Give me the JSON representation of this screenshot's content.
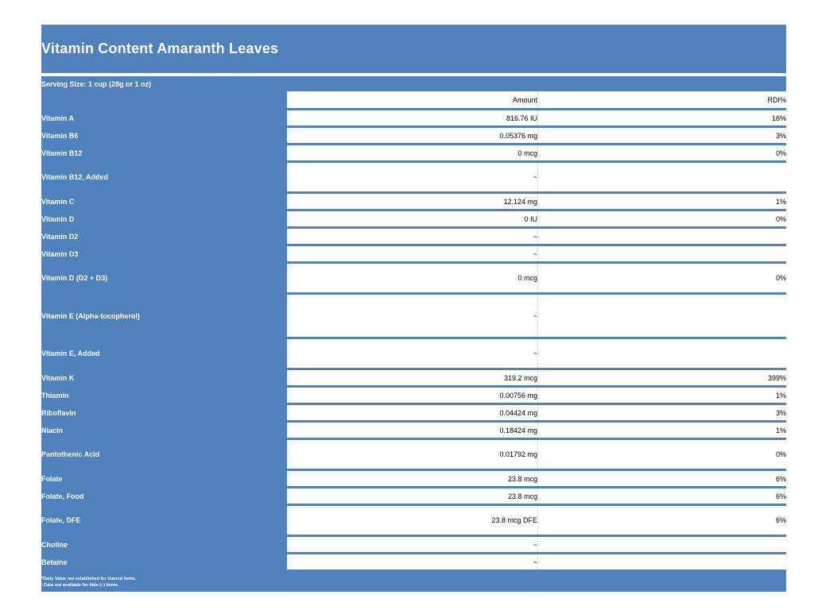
{
  "title": "Vitamin Content Amaranth Leaves",
  "serving_size": "Serving Size: 1 cup (28g or 1 oz)",
  "columns": {
    "amount": "Amount",
    "rdi": "RDI%"
  },
  "rows": [
    {
      "name": "Vitamin A",
      "amount": "816.76 IU",
      "rdi": "16%"
    },
    {
      "name": "Vitamin B6",
      "amount": "0.05376 mg",
      "rdi": "3%"
    },
    {
      "name": "Vitamin B12",
      "amount": "0 mcg",
      "rdi": "0%"
    },
    {
      "name": "Vitamin B12, Added",
      "amount": "~",
      "rdi": ""
    },
    {
      "name": "Vitamin C",
      "amount": "12.124 mg",
      "rdi": "1%"
    },
    {
      "name": "Vitamin D",
      "amount": "0 IU",
      "rdi": "0%"
    },
    {
      "name": "Vitamin D2",
      "amount": "~",
      "rdi": ""
    },
    {
      "name": "Vitamin D3",
      "amount": "~",
      "rdi": ""
    },
    {
      "name": "Vitamin D (D2 + D3)",
      "amount": "0 mcg",
      "rdi": "0%"
    },
    {
      "name": "Vitamin E (Alpha-tocopherol)",
      "amount": "~",
      "rdi": ""
    },
    {
      "name": "Vitamin E, Added",
      "amount": "~",
      "rdi": ""
    },
    {
      "name": "Vitamin K",
      "amount": "319.2 mcg",
      "rdi": "399%"
    },
    {
      "name": "Thiamin",
      "amount": "0.00756 mg",
      "rdi": "1%"
    },
    {
      "name": "Riboflavin",
      "amount": "0.04424 mg",
      "rdi": "3%"
    },
    {
      "name": "Niacin",
      "amount": "0.18424 mg",
      "rdi": "1%"
    },
    {
      "name": "Pantothenic Acid",
      "amount": "0.01792 mg",
      "rdi": "0%"
    },
    {
      "name": "Folate",
      "amount": "23.8 mcg",
      "rdi": "6%"
    },
    {
      "name": "Folate, Food",
      "amount": "23.8 mcg",
      "rdi": "6%"
    },
    {
      "name": "Folate, DFE",
      "amount": "23.8 mcg DFE",
      "rdi": "6%"
    },
    {
      "name": "Choline",
      "amount": "~",
      "rdi": ""
    },
    {
      "name": "Betaine",
      "amount": "~",
      "rdi": ""
    }
  ],
  "footnotes": [
    "*Daily Value not established for starred items.",
    "~Data not available for tilde (~) items."
  ]
}
